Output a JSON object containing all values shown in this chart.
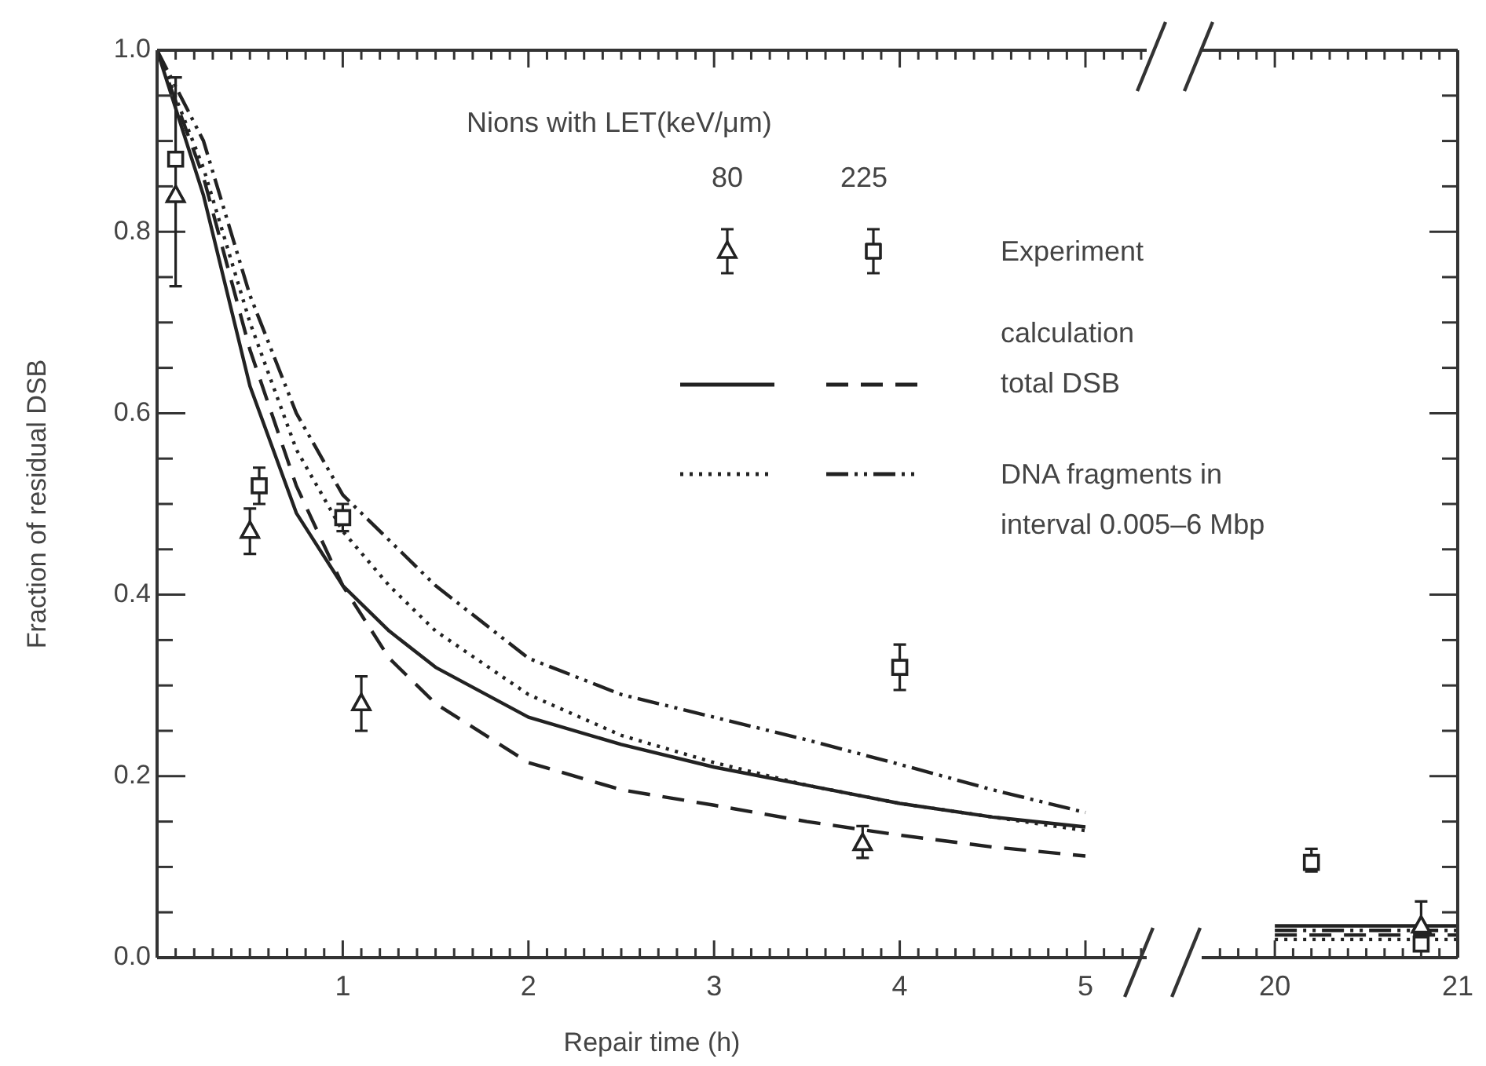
{
  "chart_data": [
    {
      "type": "line",
      "xlabel": "Repair time (h)",
      "ylabel": "Fraction of residual DSB",
      "legend_title": "Nions with LET(keV/μm)",
      "annotations": [
        "80",
        "225",
        "Experiment",
        "calculation total DSB",
        "DNA fragments in interval 0.005–6 Mbp"
      ],
      "xlim": [
        0,
        5.33
      ],
      "xticks": [
        {
          "value": 0,
          "label": null
        },
        1,
        2,
        3,
        4,
        5
      ],
      "ylim": [
        0,
        1
      ],
      "yticks": [
        {
          "value": 0,
          "label": "0.0"
        },
        0.2,
        0.4,
        0.6,
        0.8,
        {
          "value": 1,
          "label": "1.0"
        }
      ],
      "grid": false,
      "series": [
        {
          "type": "scatter",
          "marker": "triangle",
          "color": "#222222",
          "x": [
            0.1,
            0.5,
            1.1,
            3.8
          ],
          "values": [
            0.84,
            0.47,
            0.28,
            0.126
          ],
          "errors": [
            [
              0.74,
              0.97
            ],
            [
              0.445,
              0.495
            ],
            [
              0.25,
              0.31
            ],
            [
              0.11,
              0.145
            ]
          ]
        },
        {
          "type": "scatter",
          "marker": "square",
          "color": "#222222",
          "x": [
            0.1,
            0.55,
            1.0,
            4.0
          ],
          "values": [
            0.88,
            0.52,
            0.485,
            0.32
          ],
          "errors": [
            null,
            [
              0.5,
              0.54
            ],
            [
              0.47,
              0.5
            ],
            [
              0.295,
              0.345
            ]
          ]
        },
        {
          "type": "line",
          "line_style": "solid",
          "color": "#222222",
          "x": [
            0,
            0.25,
            0.5,
            0.75,
            1,
            1.25,
            1.5,
            2,
            2.5,
            3,
            3.5,
            4,
            4.5,
            5
          ],
          "values": [
            1,
            0.84,
            0.63,
            0.49,
            0.41,
            0.36,
            0.32,
            0.265,
            0.235,
            0.21,
            0.19,
            0.17,
            0.155,
            0.144
          ]
        },
        {
          "type": "line",
          "line_style": "dashed",
          "color": "#222222",
          "x": [
            0,
            0.25,
            0.5,
            0.75,
            1,
            1.25,
            1.5,
            2,
            2.5,
            3,
            3.5,
            4,
            4.5,
            5
          ],
          "values": [
            1,
            0.86,
            0.67,
            0.52,
            0.41,
            0.33,
            0.28,
            0.215,
            0.185,
            0.168,
            0.15,
            0.135,
            0.122,
            0.112
          ]
        },
        {
          "type": "line",
          "line_style": "dotted",
          "color": "#222222",
          "x": [
            0,
            0.25,
            0.5,
            0.75,
            1,
            1.25,
            1.5,
            2,
            2.5,
            3,
            3.5,
            4,
            4.5,
            5
          ],
          "values": [
            1,
            0.87,
            0.7,
            0.56,
            0.47,
            0.41,
            0.36,
            0.29,
            0.245,
            0.215,
            0.19,
            0.17,
            0.155,
            0.14
          ]
        },
        {
          "type": "line",
          "line_style": "dashdot",
          "color": "#222222",
          "x": [
            0,
            0.25,
            0.5,
            0.75,
            1,
            1.3,
            1.5,
            2,
            2.5,
            3,
            3.5,
            4,
            4.5,
            5
          ],
          "values": [
            1,
            0.9,
            0.73,
            0.6,
            0.51,
            0.45,
            0.41,
            0.33,
            0.29,
            0.265,
            0.24,
            0.213,
            0.185,
            0.16
          ]
        }
      ]
    },
    {
      "type": "line",
      "tick_labels": "x",
      "xlim": [
        19.6,
        21
      ],
      "xticks": [
        20,
        21
      ],
      "ylim": [
        0,
        1
      ],
      "yticks": [
        0,
        0.2,
        0.4,
        0.6,
        0.8,
        1
      ],
      "grid": false,
      "series": [
        {
          "type": "scatter",
          "marker": "triangle",
          "color": "#222222",
          "x": [
            20.8
          ],
          "values": [
            0.035
          ],
          "errors": [
            [
              0.012,
              0.062
            ]
          ]
        },
        {
          "type": "scatter",
          "marker": "square",
          "color": "#222222",
          "x": [
            20.2,
            20.8
          ],
          "values": [
            0.105,
            0.015
          ],
          "errors": [
            [
              0.095,
              0.12
            ],
            null
          ]
        },
        {
          "type": "line",
          "line_style": "solid",
          "color": "#222222",
          "x": [
            20,
            21
          ],
          "values": [
            0.035,
            0.035
          ]
        },
        {
          "type": "line",
          "line_style": "dashed",
          "color": "#222222",
          "x": [
            20,
            21
          ],
          "values": [
            0.025,
            0.025
          ]
        },
        {
          "type": "line",
          "line_style": "dotted",
          "color": "#222222",
          "x": [
            20,
            21
          ],
          "values": [
            0.02,
            0.02
          ]
        },
        {
          "type": "line",
          "line_style": "dashdot",
          "color": "#222222",
          "x": [
            20,
            21
          ],
          "values": [
            0.03,
            0.03
          ]
        }
      ]
    }
  ]
}
